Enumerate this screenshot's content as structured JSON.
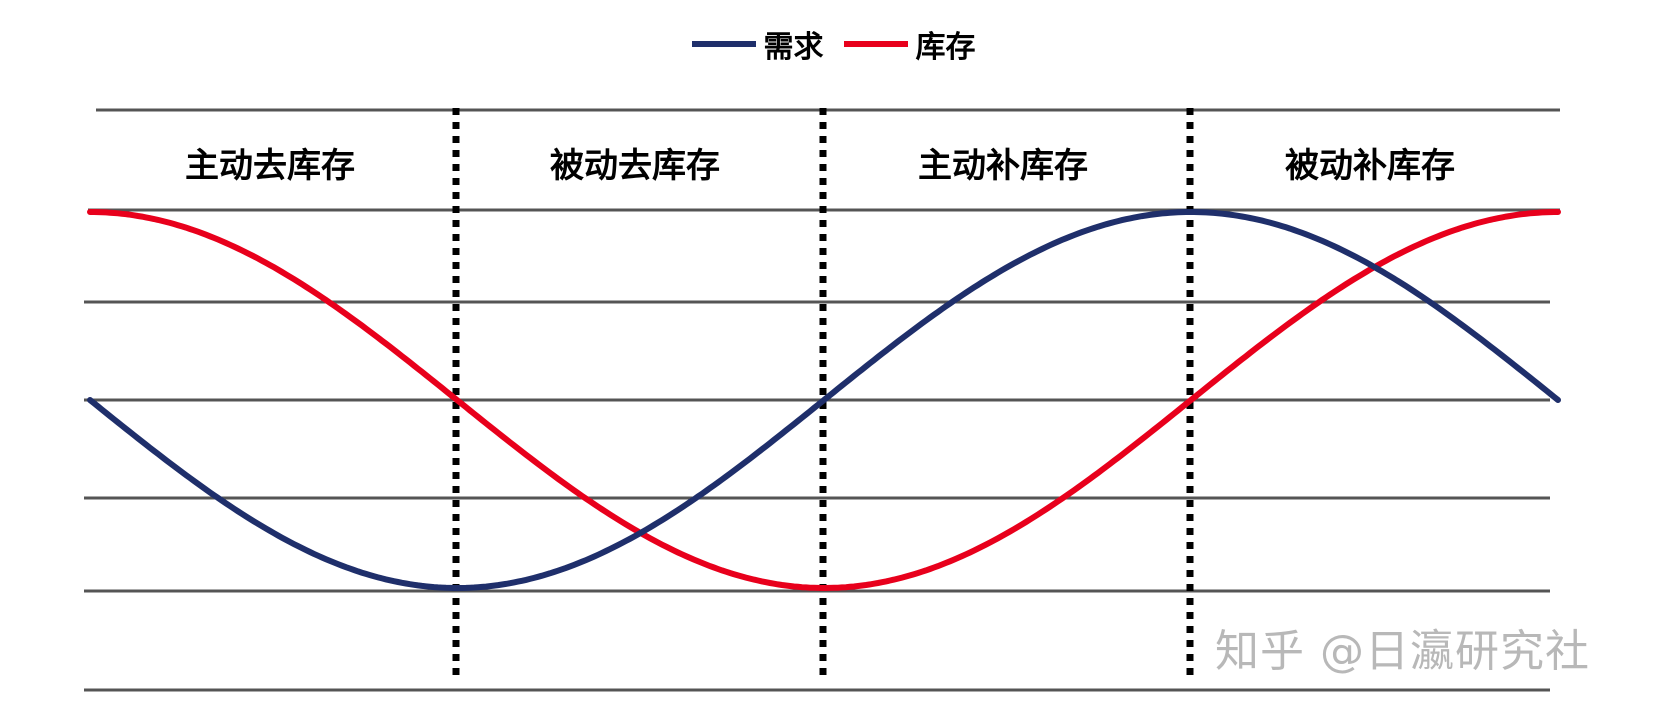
{
  "legend": {
    "demand_label": "需求",
    "inventory_label": "库存"
  },
  "colors": {
    "demand": "#1f2f6b",
    "inventory": "#e8001c",
    "gridline": "#555555",
    "divider": "#000000"
  },
  "phases": [
    {
      "label": "主动去库存"
    },
    {
      "label": "被动去库存"
    },
    {
      "label": "主动补库存"
    },
    {
      "label": "被动补库存"
    }
  ],
  "watermark": "知乎 @日瀛研究社"
}
